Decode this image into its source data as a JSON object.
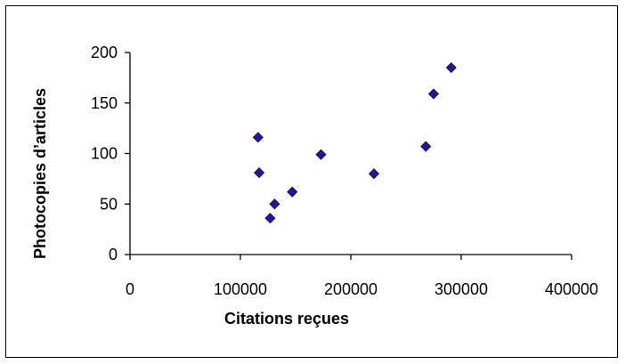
{
  "chart_data": {
    "type": "scatter",
    "title": "",
    "xlabel": "Citations reçues",
    "ylabel": "Photocopies d’articles",
    "xlim": [
      0,
      400000
    ],
    "ylim": [
      0,
      200
    ],
    "x_ticks": [
      "0",
      "100000",
      "200000",
      "300000",
      "400000"
    ],
    "y_ticks": [
      "0",
      "50",
      "100",
      "150",
      "200"
    ],
    "grid": false,
    "legend": "none",
    "marker": "diamond",
    "marker_color": "#1c1c8c",
    "points": [
      {
        "x": 116000,
        "y": 116
      },
      {
        "x": 117000,
        "y": 81
      },
      {
        "x": 127000,
        "y": 36
      },
      {
        "x": 131000,
        "y": 50
      },
      {
        "x": 147000,
        "y": 62
      },
      {
        "x": 173000,
        "y": 99
      },
      {
        "x": 221000,
        "y": 80
      },
      {
        "x": 268000,
        "y": 107
      },
      {
        "x": 275000,
        "y": 159
      },
      {
        "x": 291000,
        "y": 185
      }
    ]
  }
}
